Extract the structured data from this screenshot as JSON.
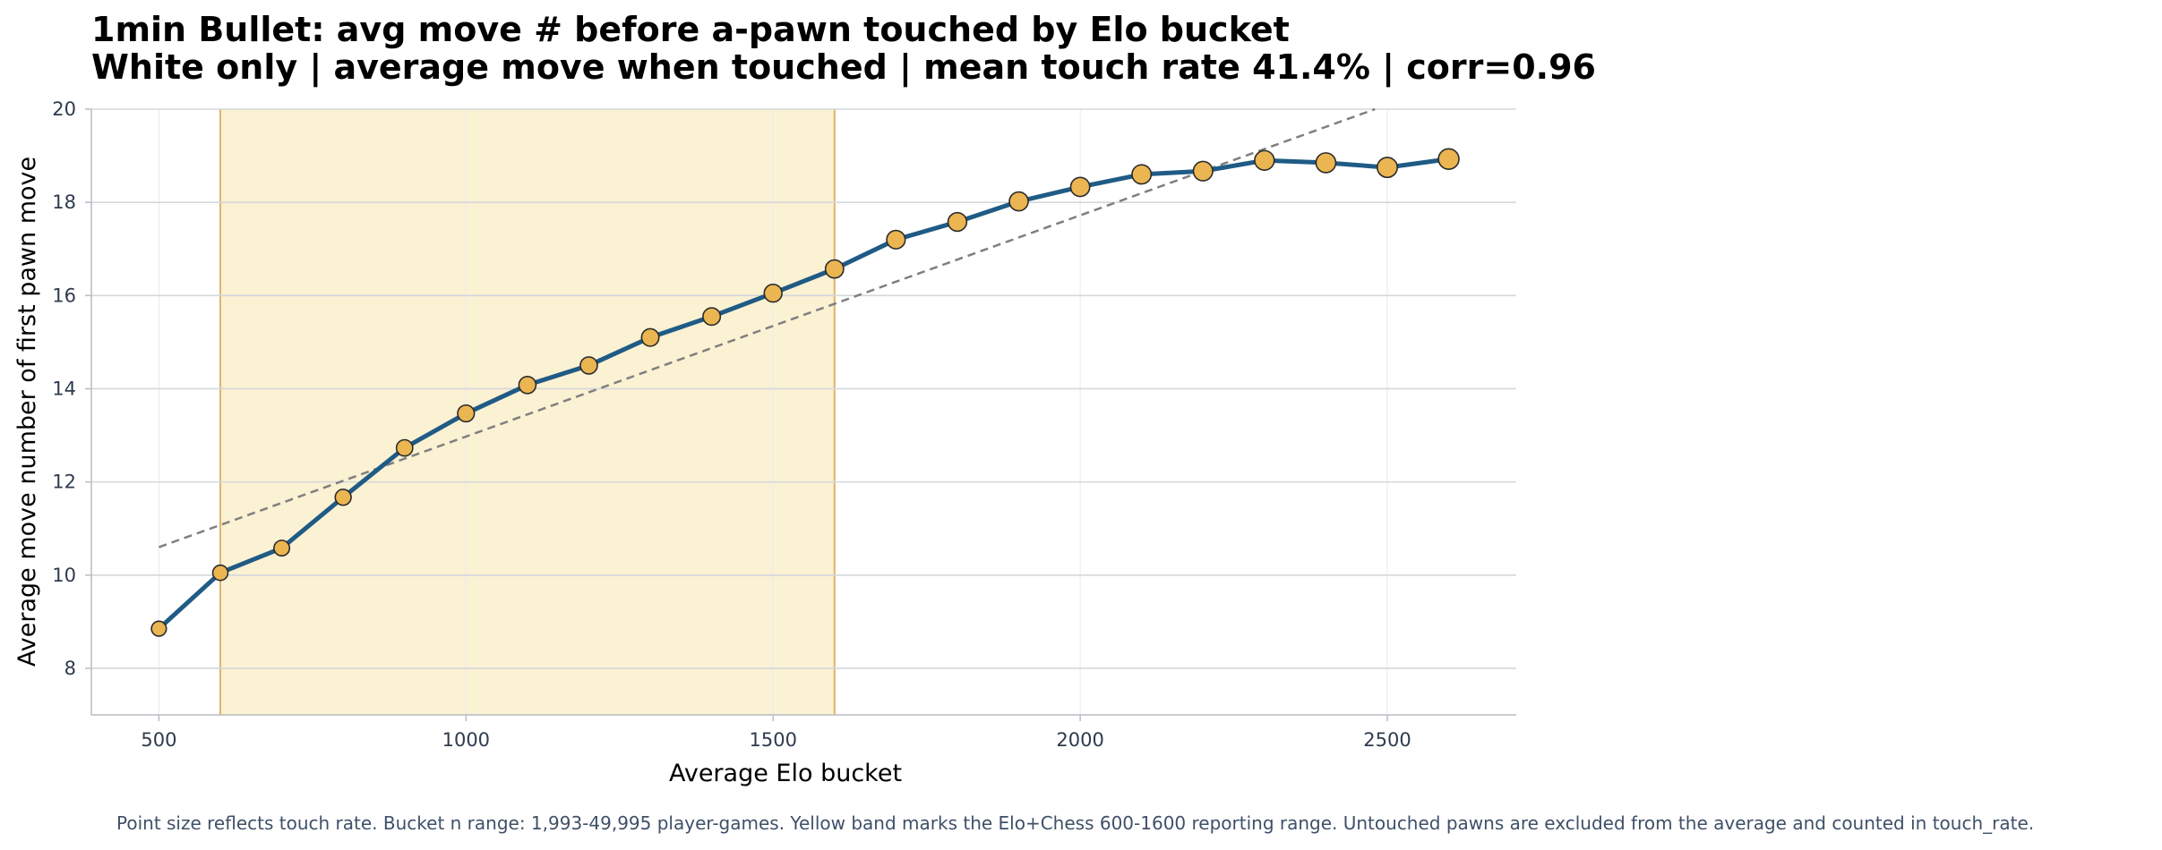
{
  "chart_data": {
    "type": "line",
    "title_lines": [
      "1min Bullet: avg move # before a-pawn touched by Elo bucket",
      "White only | average move when touched | mean touch rate 41.4% | corr=0.96"
    ],
    "xlabel": "Average Elo bucket",
    "ylabel": "Average move number of first pawn move",
    "xlim": [
      390,
      2710
    ],
    "ylim": [
      7,
      20
    ],
    "x_ticks": [
      500,
      1000,
      1500,
      2000,
      2500
    ],
    "y_ticks": [
      8,
      10,
      12,
      14,
      16,
      18,
      20
    ],
    "grid": true,
    "highlight_band": {
      "x_start": 600,
      "x_end": 1600
    },
    "trend_line": {
      "x": [
        500,
        2480
      ],
      "y": [
        10.6,
        20.0
      ]
    },
    "series": [
      {
        "x": [
          500,
          600,
          700,
          800,
          900,
          1000,
          1100,
          1200,
          1300,
          1400,
          1500,
          1600,
          1700,
          1800,
          1900,
          2000,
          2100,
          2200,
          2300,
          2400,
          2500,
          2600
        ],
        "y": [
          8.85,
          10.05,
          10.58,
          11.67,
          12.73,
          13.47,
          14.08,
          14.5,
          15.1,
          15.55,
          16.05,
          16.57,
          17.2,
          17.58,
          18.02,
          18.33,
          18.6,
          18.67,
          18.9,
          18.85,
          18.75,
          18.93
        ],
        "touch_rate_relative": [
          0.2,
          0.25,
          0.3,
          0.35,
          0.4,
          0.45,
          0.5,
          0.5,
          0.55,
          0.55,
          0.6,
          0.65,
          0.7,
          0.72,
          0.75,
          0.78,
          0.8,
          0.82,
          0.85,
          0.88,
          0.92,
          0.98
        ]
      }
    ],
    "colors": {
      "line": "#1f5b85",
      "marker_fill": "#ebb552",
      "marker_edge": "#2b2b2b",
      "band_fill": "#fbf1d3",
      "band_edge": "#e0b46d",
      "trend": "#7f7f7f",
      "grid": "#d4d7db"
    },
    "footnote": "Point size reflects touch rate. Bucket n range: 1,993-49,995 player-games. Yellow band marks the Elo+Chess 600-1600 reporting range. Untouched pawns are excluded from the average and counted in touch_rate."
  }
}
